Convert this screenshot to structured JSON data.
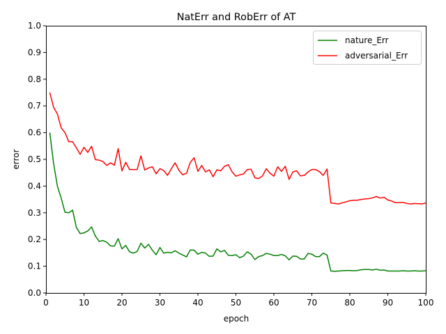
{
  "chart_data": {
    "type": "line",
    "title": "NatErr and RobErr of AT",
    "xlabel": "epoch",
    "ylabel": "error",
    "xlim": [
      0,
      100
    ],
    "ylim": [
      0,
      1.0
    ],
    "xticks": [
      0,
      10,
      20,
      30,
      40,
      50,
      60,
      70,
      80,
      90,
      100
    ],
    "yticks": [
      0.0,
      0.1,
      0.2,
      0.3,
      0.4,
      0.5,
      0.6,
      0.7,
      0.8,
      0.9,
      1.0
    ],
    "xtick_labels": [
      "0",
      "10",
      "20",
      "30",
      "40",
      "50",
      "60",
      "70",
      "80",
      "90",
      "100"
    ],
    "ytick_labels": [
      "0.0",
      "0.1",
      "0.2",
      "0.3",
      "0.4",
      "0.5",
      "0.6",
      "0.7",
      "0.8",
      "0.9",
      "1.0"
    ],
    "grid": false,
    "legend_position": "top-right",
    "x": [
      1,
      2,
      3,
      4,
      5,
      6,
      7,
      8,
      9,
      10,
      11,
      12,
      13,
      14,
      15,
      16,
      17,
      18,
      19,
      20,
      21,
      22,
      23,
      24,
      25,
      26,
      27,
      28,
      29,
      30,
      31,
      32,
      33,
      34,
      35,
      36,
      37,
      38,
      39,
      40,
      41,
      42,
      43,
      44,
      45,
      46,
      47,
      48,
      49,
      50,
      51,
      52,
      53,
      54,
      55,
      56,
      57,
      58,
      59,
      60,
      61,
      62,
      63,
      64,
      65,
      66,
      67,
      68,
      69,
      70,
      71,
      72,
      73,
      74,
      75,
      76,
      77,
      78,
      79,
      80,
      81,
      82,
      83,
      84,
      85,
      86,
      87,
      88,
      89,
      90,
      91,
      92,
      93,
      94,
      95,
      96,
      97,
      98,
      99,
      100
    ],
    "series": [
      {
        "name": "nature_Err",
        "color": "#008000",
        "values": [
          0.6,
          0.485,
          0.4,
          0.355,
          0.302,
          0.3,
          0.31,
          0.245,
          0.222,
          0.225,
          0.232,
          0.247,
          0.213,
          0.193,
          0.196,
          0.19,
          0.176,
          0.175,
          0.203,
          0.165,
          0.178,
          0.154,
          0.149,
          0.155,
          0.186,
          0.168,
          0.182,
          0.16,
          0.143,
          0.17,
          0.149,
          0.152,
          0.15,
          0.158,
          0.149,
          0.142,
          0.135,
          0.161,
          0.16,
          0.145,
          0.152,
          0.149,
          0.137,
          0.138,
          0.165,
          0.154,
          0.159,
          0.141,
          0.14,
          0.143,
          0.132,
          0.138,
          0.154,
          0.145,
          0.125,
          0.136,
          0.14,
          0.148,
          0.145,
          0.14,
          0.14,
          0.144,
          0.139,
          0.124,
          0.138,
          0.137,
          0.127,
          0.127,
          0.148,
          0.145,
          0.136,
          0.136,
          0.149,
          0.142,
          0.082,
          0.081,
          0.082,
          0.083,
          0.084,
          0.084,
          0.083,
          0.084,
          0.087,
          0.088,
          0.088,
          0.086,
          0.089,
          0.085,
          0.086,
          0.082,
          0.082,
          0.082,
          0.082,
          0.083,
          0.082,
          0.082,
          0.083,
          0.082,
          0.082,
          0.083
        ]
      },
      {
        "name": "adversarial_Err",
        "color": "#ff0000",
        "values": [
          0.75,
          0.695,
          0.67,
          0.618,
          0.6,
          0.566,
          0.566,
          0.543,
          0.519,
          0.545,
          0.526,
          0.549,
          0.499,
          0.497,
          0.492,
          0.477,
          0.487,
          0.478,
          0.54,
          0.457,
          0.489,
          0.462,
          0.462,
          0.462,
          0.513,
          0.46,
          0.468,
          0.472,
          0.446,
          0.465,
          0.458,
          0.44,
          0.465,
          0.487,
          0.459,
          0.442,
          0.448,
          0.489,
          0.506,
          0.455,
          0.477,
          0.453,
          0.461,
          0.435,
          0.461,
          0.457,
          0.474,
          0.48,
          0.453,
          0.437,
          0.442,
          0.445,
          0.462,
          0.463,
          0.431,
          0.428,
          0.438,
          0.465,
          0.448,
          0.437,
          0.472,
          0.455,
          0.474,
          0.425,
          0.453,
          0.457,
          0.438,
          0.44,
          0.453,
          0.462,
          0.462,
          0.454,
          0.44,
          0.464,
          0.337,
          0.335,
          0.333,
          0.337,
          0.341,
          0.345,
          0.347,
          0.347,
          0.35,
          0.352,
          0.353,
          0.356,
          0.361,
          0.355,
          0.358,
          0.348,
          0.344,
          0.338,
          0.338,
          0.339,
          0.335,
          0.333,
          0.335,
          0.334,
          0.333,
          0.337
        ]
      }
    ]
  }
}
